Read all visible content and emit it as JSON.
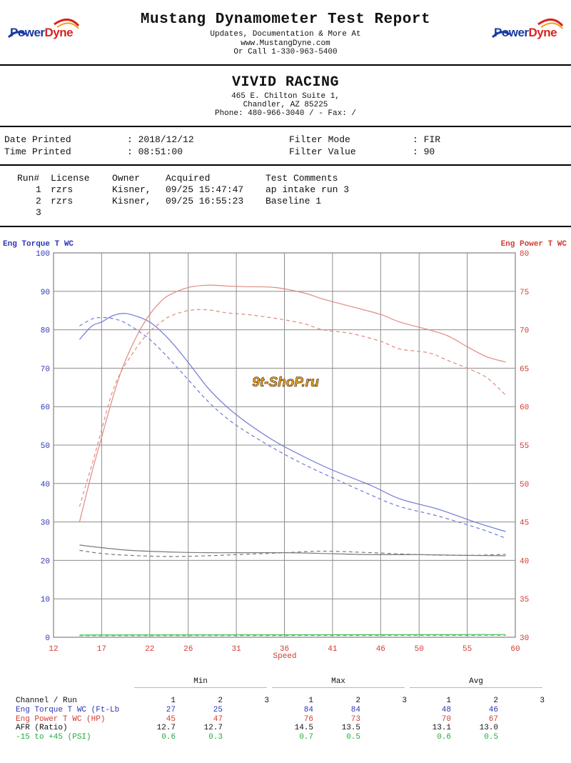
{
  "header": {
    "logo_left": {
      "part1": "Power",
      "part2": "Dyne"
    },
    "logo_right": {
      "part1": "Power",
      "part2": "Dyne"
    },
    "title": "Mustang Dynamometer Test Report",
    "line1": "Updates, Documentation & More At",
    "line2": "www.MustangDyne.com",
    "line3": "Or Call 1-330-963-5400"
  },
  "shop": {
    "name": "VIVID RACING",
    "address1": "465 E. Chilton Suite 1,",
    "address2": "Chandler, AZ  85225",
    "phone": "Phone: 480-966-3040 /  - Fax:  /"
  },
  "print_info": {
    "date_label": "Date Printed",
    "date_value": ": 2018/12/12",
    "time_label": "Time Printed",
    "time_value": ": 08:51:00",
    "filter_mode_label": "Filter Mode",
    "filter_mode_value": ": FIR",
    "filter_value_label": "Filter Value",
    "filter_value_value": ": 90"
  },
  "runs": {
    "headers": [
      "Run#",
      "License",
      "Owner",
      "Acquired",
      "Test Comments"
    ],
    "rows": [
      {
        "run": "1",
        "license": "rzrs",
        "owner": "Kisner,",
        "acquired": "09/25 15:47:47",
        "comment": "ap intake run 3"
      },
      {
        "run": "2",
        "license": "rzrs",
        "owner": "Kisner,",
        "acquired": "09/25 16:55:23",
        "comment": "Baseline 1"
      },
      {
        "run": "3",
        "license": "",
        "owner": "",
        "acquired": "",
        "comment": ""
      }
    ]
  },
  "watermark": "9t-ShoP.ru",
  "colors": {
    "torque": "#6f79d6",
    "power": "#e08a80",
    "afr": "#7a7a7a",
    "boost": "#4cc25a",
    "grid": "#8c8c8c"
  },
  "chart_data": {
    "type": "line",
    "left_axis_label": "Eng Torque T WC",
    "right_axis_label": "Eng Power T WC",
    "xlabel": "Speed",
    "xlim": [
      12,
      60
    ],
    "ylim_left": [
      0,
      100
    ],
    "ylim_right": [
      30,
      80
    ],
    "x_ticks": [
      12,
      17,
      22,
      26,
      31,
      36,
      41,
      46,
      50,
      55,
      60
    ],
    "y_ticks_left": [
      0,
      10,
      20,
      30,
      40,
      50,
      60,
      70,
      80,
      90,
      100
    ],
    "y_ticks_right": [
      30,
      35,
      40,
      45,
      50,
      55,
      60,
      65,
      70,
      75,
      80
    ],
    "grid": true,
    "series": [
      {
        "name": "Eng Torque T WC (Ft-Lb)",
        "run": 1,
        "axis": "left",
        "style": "solid",
        "color": "#6f79d6",
        "x": [
          14.7,
          16.0,
          17.0,
          18.0,
          19.0,
          20.0,
          22.0,
          24.0,
          26.0,
          28.0,
          30.0,
          32.0,
          35.0,
          38.0,
          41.0,
          45.0,
          48.0,
          52.0,
          56.0,
          59.0
        ],
        "y": [
          77.5,
          81,
          82,
          83.5,
          84.2,
          84,
          82,
          77.5,
          71.5,
          65,
          60,
          56,
          51,
          47,
          43.5,
          39.5,
          36,
          33.3,
          29.8,
          27.5
        ]
      },
      {
        "name": "Eng Torque T WC (Ft-Lb)",
        "run": 2,
        "axis": "left",
        "style": "dashed",
        "color": "#6f79d6",
        "x": [
          14.7,
          16.0,
          17.0,
          18.0,
          19.0,
          20.0,
          22.0,
          24.0,
          26.0,
          28.0,
          30.0,
          32.0,
          35.0,
          38.0,
          41.0,
          45.0,
          48.0,
          52.0,
          56.0,
          59.0
        ],
        "y": [
          81,
          82.8,
          83.2,
          83,
          82.3,
          81,
          77.5,
          72.5,
          67,
          61.5,
          57,
          53.5,
          49,
          45,
          41.5,
          37,
          34,
          31.5,
          28.5,
          25.8
        ]
      },
      {
        "name": "Eng Power T WC (HP)",
        "run": 1,
        "axis": "right",
        "style": "solid",
        "color": "#e08a80",
        "x": [
          14.7,
          16.0,
          17.0,
          18.0,
          19.0,
          20.0,
          21.0,
          22.0,
          23.0,
          24.0,
          26.0,
          28.0,
          30.0,
          32.0,
          35.0,
          38.0,
          40.0,
          43.0,
          46.0,
          48.0,
          51.0,
          53.0,
          55.0,
          57.0,
          59.0
        ],
        "y": [
          45,
          51.5,
          56,
          60.5,
          64.5,
          67.5,
          70,
          72,
          73.5,
          74.5,
          75.5,
          75.8,
          75.7,
          75.6,
          75.5,
          74.8,
          74,
          73,
          72,
          71,
          70,
          69.2,
          67.8,
          66.5,
          65.8
        ]
      },
      {
        "name": "Eng Power T WC (HP)",
        "run": 2,
        "axis": "right",
        "style": "dashed",
        "color": "#e08a80",
        "x": [
          14.7,
          16.0,
          17.0,
          18.0,
          19.0,
          20.0,
          21.0,
          22.0,
          23.0,
          24.0,
          26.0,
          28.0,
          30.0,
          32.0,
          35.0,
          38.0,
          40.0,
          43.0,
          46.0,
          48.0,
          51.0,
          53.0,
          55.0,
          57.0,
          59.0
        ],
        "y": [
          47,
          52.5,
          57,
          61.5,
          64.5,
          66.5,
          68.3,
          69.8,
          70.8,
          71.7,
          72.5,
          72.6,
          72.2,
          72,
          71.5,
          70.8,
          70,
          69.5,
          68.5,
          67.5,
          67,
          66,
          65,
          63.8,
          61.5
        ]
      },
      {
        "name": "AFR (Ratio)",
        "run": 1,
        "axis": "left",
        "style": "solid",
        "color": "#7a7a7a",
        "x": [
          14.7,
          17.0,
          20.0,
          24.0,
          28.0,
          32.0,
          36.0,
          40.0,
          45.0,
          50.0,
          55.0,
          59.0
        ],
        "y": [
          24,
          23.3,
          22.6,
          22.2,
          22,
          22,
          22,
          21.8,
          21.5,
          21.5,
          21.3,
          21.2
        ]
      },
      {
        "name": "AFR (Ratio)",
        "run": 2,
        "axis": "left",
        "style": "dashed",
        "color": "#7a7a7a",
        "x": [
          14.7,
          17.0,
          20.0,
          24.0,
          28.0,
          32.0,
          36.0,
          40.0,
          45.0,
          50.0,
          55.0,
          59.0
        ],
        "y": [
          22.6,
          21.8,
          21.3,
          21,
          21.2,
          21.6,
          22,
          22.4,
          22,
          21.5,
          21.3,
          21.6
        ]
      },
      {
        "name": "-15 to +45 (PSI)",
        "run": 1,
        "axis": "left",
        "style": "solid",
        "color": "#4cc25a",
        "x": [
          14.7,
          59.0
        ],
        "y": [
          0.6,
          0.7
        ]
      },
      {
        "name": "-15 to +45 (PSI)",
        "run": 2,
        "axis": "left",
        "style": "dashed",
        "color": "#4cc25a",
        "x": [
          14.7,
          59.0
        ],
        "y": [
          0.4,
          0.5
        ]
      }
    ]
  },
  "summary": {
    "groups": [
      "Min",
      "Max",
      "Avg"
    ],
    "channel_header": "Channel / Run",
    "run_headers": [
      "1",
      "2",
      "3"
    ],
    "rows": [
      {
        "label": "Eng Torque T WC (Ft-Lb",
        "color": "blue",
        "min": [
          "27",
          "25",
          ""
        ],
        "max": [
          "84",
          "84",
          ""
        ],
        "avg": [
          "48",
          "46",
          ""
        ]
      },
      {
        "label": "Eng Power T WC (HP)",
        "color": "red",
        "min": [
          "45",
          "47",
          ""
        ],
        "max": [
          "76",
          "73",
          ""
        ],
        "avg": [
          "70",
          "67",
          ""
        ]
      },
      {
        "label": "AFR (Ratio)",
        "color": "black",
        "min": [
          "12.7",
          "12.7",
          ""
        ],
        "max": [
          "14.5",
          "13.5",
          ""
        ],
        "avg": [
          "13.1",
          "13.0",
          ""
        ]
      },
      {
        "label": "-15 to +45 (PSI)",
        "color": "green",
        "min": [
          "0.6",
          "0.3",
          ""
        ],
        "max": [
          "0.7",
          "0.5",
          ""
        ],
        "avg": [
          "0.6",
          "0.5",
          ""
        ]
      }
    ]
  }
}
